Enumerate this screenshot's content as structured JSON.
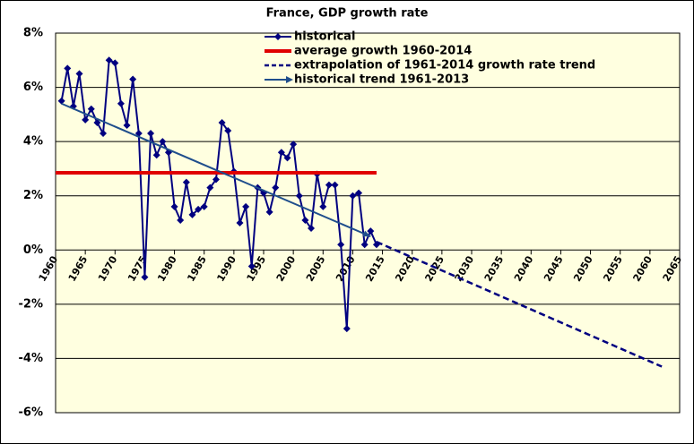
{
  "chart_data": {
    "type": "line",
    "title": "France, GDP growth rate",
    "xlim": [
      1960,
      2065
    ],
    "xticks": [
      1960,
      1965,
      1970,
      1975,
      1980,
      1985,
      1990,
      1995,
      2000,
      2005,
      2010,
      2015,
      2020,
      2025,
      2030,
      2035,
      2040,
      2045,
      2050,
      2055,
      2060,
      2065
    ],
    "ylim": [
      -6,
      8
    ],
    "yticks": [
      {
        "value": -6,
        "label": "-6%"
      },
      {
        "value": -4,
        "label": "-4%"
      },
      {
        "value": -2,
        "label": "-2%"
      },
      {
        "value": 0,
        "label": "0%"
      },
      {
        "value": 2,
        "label": "2%"
      },
      {
        "value": 4,
        "label": "4%"
      },
      {
        "value": 6,
        "label": "6%"
      },
      {
        "value": 8,
        "label": "8%"
      }
    ],
    "grid": true,
    "series": [
      {
        "name": "historical",
        "color": "#000080",
        "style": "solid-markers",
        "x": [
          1961,
          1962,
          1963,
          1964,
          1965,
          1966,
          1967,
          1968,
          1969,
          1970,
          1971,
          1972,
          1973,
          1974,
          1975,
          1976,
          1977,
          1978,
          1979,
          1980,
          1981,
          1982,
          1983,
          1984,
          1985,
          1986,
          1987,
          1988,
          1989,
          1990,
          1991,
          1992,
          1993,
          1994,
          1995,
          1996,
          1997,
          1998,
          1999,
          2000,
          2001,
          2002,
          2003,
          2004,
          2005,
          2006,
          2007,
          2008,
          2009,
          2010,
          2011,
          2012,
          2013,
          2014
        ],
        "values": [
          5.5,
          6.7,
          5.3,
          6.5,
          4.8,
          5.2,
          4.7,
          4.3,
          7.0,
          6.9,
          5.4,
          4.6,
          6.3,
          4.3,
          -1.0,
          4.3,
          3.5,
          4.0,
          3.6,
          1.6,
          1.1,
          2.5,
          1.3,
          1.5,
          1.6,
          2.3,
          2.6,
          4.7,
          4.4,
          2.9,
          1.0,
          1.6,
          -0.6,
          2.3,
          2.1,
          1.4,
          2.3,
          3.6,
          3.4,
          3.9,
          2.0,
          1.1,
          0.8,
          2.8,
          1.6,
          2.4,
          2.4,
          0.2,
          -2.9,
          2.0,
          2.1,
          0.2,
          0.7,
          0.2
        ]
      },
      {
        "name": "average growth 1960-2014",
        "color": "#e00000",
        "style": "thick",
        "x": [
          1960,
          2014
        ],
        "values": [
          2.85,
          2.85
        ]
      },
      {
        "name": "extrapolation of 1961-2014 growth rate trend",
        "color": "#000080",
        "style": "dashed",
        "x": [
          2014,
          2062
        ],
        "values": [
          0.3,
          -4.3
        ]
      },
      {
        "name": "historical trend 1961-2013",
        "color": "#1f4e8c",
        "style": "arrow",
        "x": [
          1961,
          2013
        ],
        "values": [
          5.4,
          0.5
        ]
      }
    ]
  }
}
